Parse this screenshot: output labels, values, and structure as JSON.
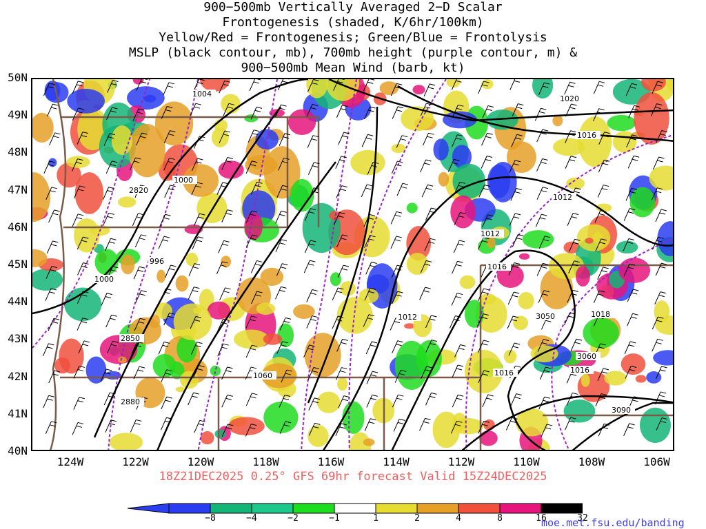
{
  "title": {
    "line1": "900−500mb Vertically Averaged 2−D Scalar",
    "line2": "Frontogenesis (shaded, K/6hr/100km)",
    "line3": "Yellow/Red = Frontogenesis;  Green/Blue = Frontolysis",
    "line4": "MSLP (black contour, mb), 700mb height (purple contour, m) &",
    "line5": "900−500mb Mean Wind (barb, kt)"
  },
  "lat_labels": [
    "50N",
    "49N",
    "48N",
    "47N",
    "46N",
    "45N",
    "44N",
    "43N",
    "42N",
    "41N",
    "40N"
  ],
  "lon_labels": [
    "124W",
    "122W",
    "120W",
    "118W",
    "116W",
    "114W",
    "112W",
    "110W",
    "108W",
    "106W"
  ],
  "valid_line": "18Z21DEC2025 0.25° GFS 69hr forecast Valid 15Z24DEC2025",
  "colorbar": {
    "labels": [
      "−8",
      "−4",
      "−2",
      "−1",
      "1",
      "2",
      "4",
      "8",
      "16",
      "32"
    ],
    "colors": [
      "#2a3df0",
      "#14b478",
      "#1ec88c",
      "#1edc1e",
      "#ffffff",
      "#e6dc32",
      "#e6a028",
      "#f0503c",
      "#e6147c",
      "#000000"
    ],
    "arrow_low_color": "#2a3df0",
    "arrow_high_color": "#aaaaaa"
  },
  "contour_labels": {
    "mslp": [
      "1004",
      "1020",
      "1016",
      "1000",
      "1012",
      "1012",
      "996",
      "1000",
      "1016",
      "1012",
      "1018",
      "1016",
      "1016",
      "1060"
    ],
    "height": [
      "2820",
      "2850",
      "2880",
      "3050",
      "3060",
      "3090"
    ]
  },
  "credit": "moe.met.fsu.edu/banding",
  "colors": {
    "mslp": "#000000",
    "height": "#9a22c8",
    "borders": "#7a5a48",
    "valid_text": "#f06060",
    "credit_text": "#3c3cf0"
  }
}
